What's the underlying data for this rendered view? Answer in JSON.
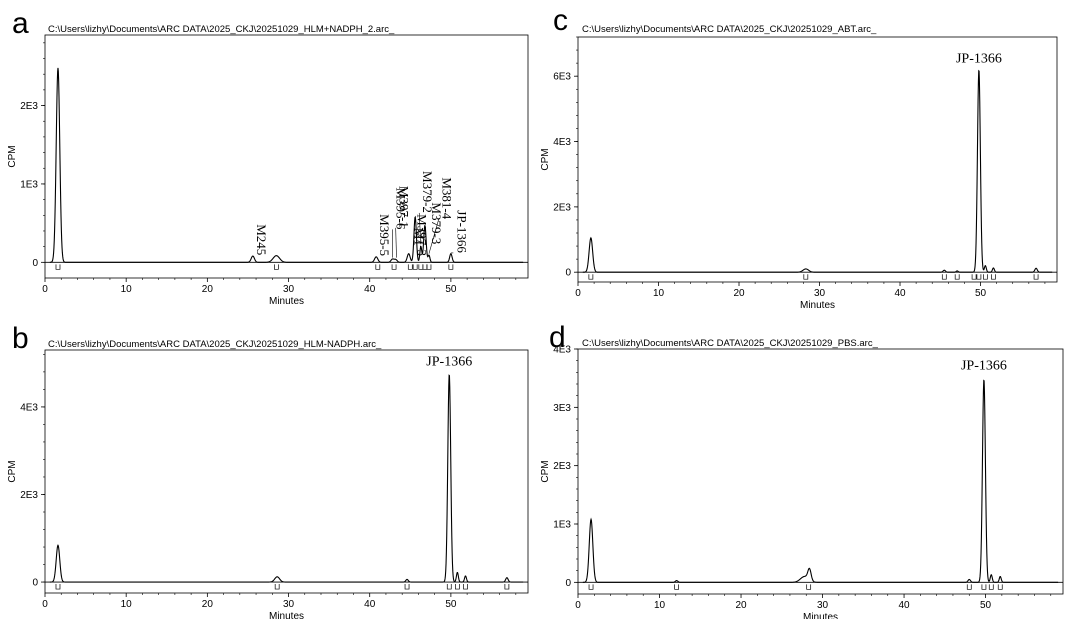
{
  "chart_data": [
    {
      "panel": "a",
      "type": "line",
      "title": "C:\\Users\\lizhy\\Documents\\ARC DATA\\2025_CKJ\\20251029_HLM+NADPH_2.arc_",
      "xlabel": "Minutes",
      "ylabel": "CPM",
      "xlim": [
        0,
        59.5
      ],
      "ylim": [
        -200,
        2900
      ],
      "xticks": [
        0,
        10,
        20,
        30,
        40,
        50
      ],
      "yticks": [
        0,
        1000,
        2000
      ],
      "ytick_labels": [
        "0",
        "1E3",
        "2E3"
      ],
      "peaks": [
        {
          "x": 1.6,
          "h": 2480,
          "w": 0.22
        },
        {
          "x": 25.6,
          "h": 80,
          "w": 0.2
        },
        {
          "x": 28.5,
          "h": 85,
          "w": 0.4
        },
        {
          "x": 40.8,
          "h": 70,
          "w": 0.2
        },
        {
          "x": 42.8,
          "h": 40,
          "w": 0.18
        },
        {
          "x": 43.2,
          "h": 35,
          "w": 0.18
        },
        {
          "x": 44.8,
          "h": 110,
          "w": 0.18
        },
        {
          "x": 45.6,
          "h": 580,
          "w": 0.15
        },
        {
          "x": 46.3,
          "h": 200,
          "w": 0.12
        },
        {
          "x": 46.8,
          "h": 470,
          "w": 0.15
        },
        {
          "x": 47.3,
          "h": 90,
          "w": 0.12
        },
        {
          "x": 50.0,
          "h": 110,
          "w": 0.15
        }
      ],
      "markers": [
        1.6,
        28.5,
        41.0,
        43.0,
        45.0,
        45.6,
        46.3,
        46.8,
        47.3,
        50.0
      ],
      "annotations": [
        {
          "text": "M245",
          "x": 25.6,
          "y": 90
        },
        {
          "text": "M395-5",
          "x": 40.8,
          "y": 80
        },
        {
          "text": "M395-6",
          "x": 42.8,
          "y": 420
        },
        {
          "text": "M397-1",
          "x": 43.2,
          "y": 440
        },
        {
          "text": "M1",
          "x": 45.0,
          "y": 210
        },
        {
          "text": "M397-3",
          "x": 45.4,
          "y": 80
        },
        {
          "text": "M379-2",
          "x": 46.1,
          "y": 630
        },
        {
          "text": "M379-3",
          "x": 47.2,
          "y": 230
        },
        {
          "text": "M381-4",
          "x": 48.5,
          "y": 550
        },
        {
          "text": "JP-1366",
          "x": 50.3,
          "y": 120
        }
      ]
    },
    {
      "panel": "b",
      "type": "line",
      "title": "C:\\Users\\lizhy\\Documents\\ARC DATA\\2025_CKJ\\20251029_HLM-NADPH.arc_",
      "xlabel": "Minutes",
      "ylabel": "CPM",
      "xlim": [
        0,
        59.5
      ],
      "ylim": [
        -250,
        5300
      ],
      "xticks": [
        0,
        10,
        20,
        30,
        40,
        50
      ],
      "yticks": [
        0,
        2000,
        4000
      ],
      "ytick_labels": [
        "0",
        "2E3",
        "4E3"
      ],
      "peaks": [
        {
          "x": 1.6,
          "h": 840,
          "w": 0.22
        },
        {
          "x": 28.6,
          "h": 120,
          "w": 0.3
        },
        {
          "x": 44.6,
          "h": 60,
          "w": 0.15
        },
        {
          "x": 49.8,
          "h": 4750,
          "w": 0.18
        },
        {
          "x": 50.8,
          "h": 220,
          "w": 0.12
        },
        {
          "x": 51.8,
          "h": 140,
          "w": 0.12
        },
        {
          "x": 56.9,
          "h": 100,
          "w": 0.15
        }
      ],
      "markers": [
        1.6,
        28.6,
        44.6,
        49.8,
        50.8,
        51.8,
        56.9
      ],
      "annotations": [
        {
          "text": "JP-1366",
          "x": 49.8,
          "y": 4850
        }
      ]
    },
    {
      "panel": "c",
      "type": "line",
      "title": "C:\\Users\\lizhy\\Documents\\ARC DATA\\2025_CKJ\\20251029_ABT.arc_",
      "xlabel": "Minutes",
      "ylabel": "CPM",
      "xlim": [
        0,
        59.5
      ],
      "ylim": [
        -300,
        7200
      ],
      "xticks": [
        0,
        10,
        20,
        30,
        40,
        50
      ],
      "yticks": [
        0,
        2000,
        4000,
        6000
      ],
      "ytick_labels": [
        "0",
        "2E3",
        "4E3",
        "6E3"
      ],
      "peaks": [
        {
          "x": 1.6,
          "h": 1050,
          "w": 0.22
        },
        {
          "x": 28.3,
          "h": 100,
          "w": 0.35
        },
        {
          "x": 45.5,
          "h": 60,
          "w": 0.15
        },
        {
          "x": 47.1,
          "h": 40,
          "w": 0.12
        },
        {
          "x": 49.8,
          "h": 6200,
          "w": 0.18
        },
        {
          "x": 50.6,
          "h": 200,
          "w": 0.12
        },
        {
          "x": 51.6,
          "h": 130,
          "w": 0.12
        },
        {
          "x": 56.9,
          "h": 120,
          "w": 0.15
        }
      ],
      "markers": [
        1.6,
        28.3,
        45.5,
        47.1,
        49.2,
        49.8,
        50.6,
        51.6,
        56.9
      ],
      "annotations": [
        {
          "text": "JP-1366",
          "x": 49.8,
          "y": 6300
        }
      ]
    },
    {
      "panel": "d",
      "type": "line",
      "title": "C:\\Users\\lizhy\\Documents\\ARC DATA\\2025_CKJ\\20251029_PBS.arc_",
      "xlabel": "Minutes",
      "ylabel": "CPM",
      "xlim": [
        0,
        59.5
      ],
      "ylim": [
        -200,
        4000
      ],
      "xticks": [
        0,
        10,
        20,
        30,
        40,
        50
      ],
      "yticks": [
        0,
        1000,
        2000,
        3000,
        4000
      ],
      "ytick_labels": [
        "0",
        "1E3",
        "2E3",
        "3E3",
        "4E3"
      ],
      "peaks": [
        {
          "x": 1.6,
          "h": 1080,
          "w": 0.22
        },
        {
          "x": 12.1,
          "h": 30,
          "w": 0.15
        },
        {
          "x": 27.8,
          "h": 100,
          "w": 0.5
        },
        {
          "x": 28.4,
          "h": 190,
          "w": 0.2
        },
        {
          "x": 48.0,
          "h": 50,
          "w": 0.15
        },
        {
          "x": 49.8,
          "h": 3480,
          "w": 0.18
        },
        {
          "x": 50.7,
          "h": 130,
          "w": 0.12
        },
        {
          "x": 51.8,
          "h": 100,
          "w": 0.12
        }
      ],
      "markers": [
        1.6,
        12.1,
        28.3,
        48.0,
        49.8,
        50.7,
        51.8
      ],
      "annotations": [
        {
          "text": "JP-1366",
          "x": 49.8,
          "y": 3580
        }
      ]
    }
  ]
}
